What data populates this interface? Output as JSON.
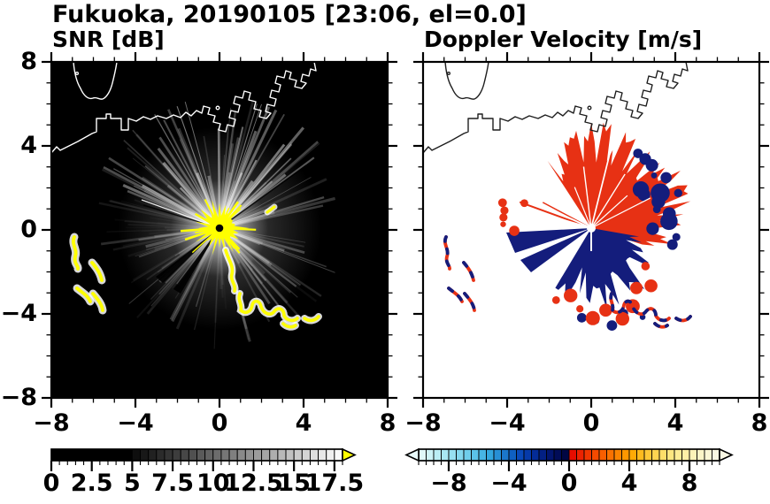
{
  "title": "Fukuoka, 20190105 [23:06, el=0.0]",
  "panels": {
    "snr": {
      "subtitle": "SNR [dB]",
      "x_tick_labels": [
        "−8",
        "−4",
        "0",
        "4",
        "8"
      ],
      "y_tick_labels": [
        "8",
        "4",
        "0",
        "−4",
        "−8"
      ]
    },
    "velocity": {
      "subtitle": "Doppler Velocity [m/s]",
      "x_tick_labels": [
        "−8",
        "−4",
        "0",
        "4",
        "8"
      ]
    }
  },
  "colorbars": {
    "snr": {
      "tick_labels": [
        "0",
        "2.5",
        "5",
        "7.5",
        "10",
        "12.5",
        "15",
        "17.5"
      ],
      "tick_values": [
        0,
        2.5,
        5,
        7.5,
        10,
        12.5,
        15,
        17.5
      ],
      "range": [
        0,
        18
      ],
      "segment_colors": [
        "#000000",
        "#000000",
        "#000000",
        "#000000",
        "#000000",
        "#000000",
        "#000000",
        "#000000",
        "#000000",
        "#000000",
        "#0e0e0e",
        "#181818",
        "#212121",
        "#2b2b2b",
        "#343434",
        "#3d3d3d",
        "#474747",
        "#505050",
        "#5a5a5a",
        "#636363",
        "#6c6c6c",
        "#767676",
        "#7f7f7f",
        "#898989",
        "#929292",
        "#9c9c9c",
        "#a5a5a5",
        "#aeaeae",
        "#b8b8b8",
        "#c1c1c1",
        "#cbcbcb",
        "#d4d4d4",
        "#dedede",
        "#e7e7e7",
        "#f0f0f0",
        "#fafafa"
      ],
      "overflow_arrow_color": "#ffff00"
    },
    "velocity": {
      "tick_labels": [
        "−8",
        "−4",
        "0",
        "4",
        "8"
      ],
      "tick_values": [
        -8,
        -4,
        0,
        4,
        8
      ],
      "range": [
        -10,
        10
      ],
      "segment_colors": [
        "#dff7f9",
        "#cdf2f7",
        "#bbedf5",
        "#a9e7f3",
        "#97e0f1",
        "#83d7ee",
        "#6fcdeb",
        "#5bc2e8",
        "#47b5e4",
        "#33a6de",
        "#278fd5",
        "#1b77cb",
        "#0f60c2",
        "#0949b8",
        "#063aa9",
        "#042c97",
        "#032083",
        "#02156e",
        "#010c58",
        "#010643",
        "#e60d00",
        "#ec2200",
        "#f13600",
        "#f54a00",
        "#f85e00",
        "#fa7100",
        "#fc8400",
        "#fd9700",
        "#feaa06",
        "#feba1e",
        "#fec838",
        "#fed451",
        "#fede69",
        "#fee680",
        "#feec95",
        "#fef0a7",
        "#fdf3b8",
        "#fcf5c7",
        "#fbf7d5",
        "#faf8e2"
      ],
      "underflow_arrow_color": "#e8fbfc",
      "overflow_arrow_color": "#faf8e4"
    }
  },
  "colors": {
    "page_bg": "#ffffff",
    "frame": "#000000",
    "snr_background": "#000000",
    "snr_ray": "#ffffff",
    "snr_clutter_yellow": "#ffff00",
    "coast_snr": "#ffffff",
    "coast_velocity": "#1e1e1e",
    "velocity_positive_red": "#e73114",
    "velocity_negative_navy": "#141d7c",
    "center_dot_snr": "#000000",
    "center_dot_velocity": "#ffffff"
  },
  "chart_data": [
    {
      "type": "heatmap",
      "title": "SNR [dB]",
      "xlabel": "",
      "ylabel": "",
      "x_range": [
        -8,
        8
      ],
      "y_range": [
        -8,
        8
      ],
      "x_ticks": [
        -8,
        -4,
        0,
        4,
        8
      ],
      "y_ticks": [
        -8,
        -4,
        0,
        4,
        8
      ],
      "minor_tick_interval": 1,
      "grid": false,
      "colorbar": {
        "ticks": [
          0,
          2.5,
          5,
          7.5,
          10,
          12.5,
          15,
          17.5
        ],
        "range": [
          0,
          18
        ],
        "palette": "grayscale black to white",
        "overflow": "yellow arrow"
      },
      "radar_center_xy": [
        0,
        0
      ],
      "features": [
        "black background = low SNR",
        "white coastline of Hakata Bay across the northern half, angular harbor piers to the northeast",
        "bright white interference spokes radiating from the radar at the origin, densest toward the north",
        "saturated yellow high-SNR clutter core at the radar site",
        "yellow ship-echo trail curving southeast from the origin to about (3.5,−4.5)",
        "yellow echo arcs in the southwest near (−7,−1) down to (−5.5,−4)"
      ]
    },
    {
      "type": "heatmap",
      "title": "Doppler Velocity [m/s]",
      "xlabel": "",
      "ylabel": "",
      "x_range": [
        -8,
        8
      ],
      "y_range": [
        -8,
        8
      ],
      "x_ticks": [
        -8,
        -4,
        0,
        4,
        8
      ],
      "y_ticks": [
        -8,
        -4,
        0,
        4,
        8
      ],
      "minor_tick_interval": 1,
      "grid": false,
      "colorbar": {
        "ticks": [
          -8,
          -4,
          0,
          4,
          8
        ],
        "range": [
          -10,
          10
        ],
        "palette": "cyan-blue-navy negative, red-orange-cream positive",
        "underflow": "pale cyan arrow",
        "overflow": "cream arrow"
      },
      "radar_center_xy": [
        0,
        0
      ],
      "features": [
        "white background = no echo",
        "black coastline of Hakata Bay",
        "red (positive velocity) echo fan north and northeast of the radar out to about 4 km",
        "navy (negative velocity) echoes south/southeast of the radar and a wedge pointing west-southwest",
        "mixed red/navy ship echoes southwest near (−7,−1)…(−5.5,−4) and along a trail to (3.5,−4.5)",
        "white radial gaps through the echo fan at the radar location"
      ]
    }
  ]
}
